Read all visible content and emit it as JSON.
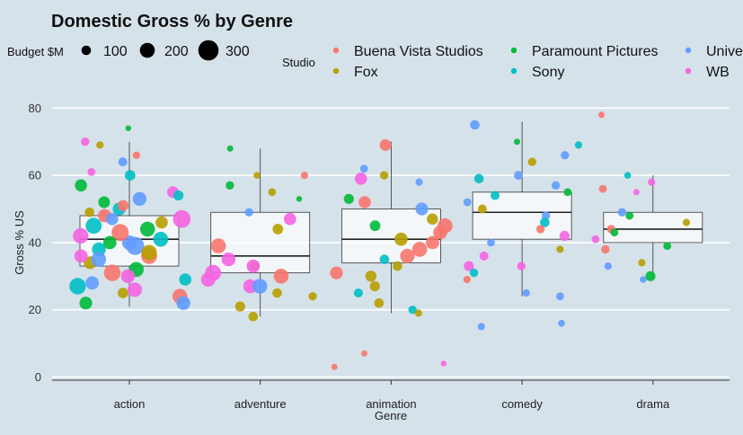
{
  "chart_data": {
    "type": "boxplot-with-jittered-scatter",
    "title": "Domestic Gross % by Genre",
    "xlabel": "Genre",
    "ylabel": "Gross % US",
    "categories": [
      "action",
      "adventure",
      "animation",
      "comedy",
      "drama"
    ],
    "ylim": [
      -1,
      82
    ],
    "yticks": [
      0,
      20,
      40,
      60,
      80
    ],
    "grid": "horizontal",
    "boxes": [
      {
        "category": "action",
        "whisker_low": 21,
        "q1": 33,
        "median": 41,
        "q3": 48,
        "whisker_high": 70
      },
      {
        "category": "adventure",
        "whisker_low": 18,
        "q1": 31,
        "median": 36,
        "q3": 49,
        "whisker_high": 68
      },
      {
        "category": "animation",
        "whisker_low": 19,
        "q1": 34,
        "median": 41,
        "q3": 50,
        "whisker_high": 70
      },
      {
        "category": "comedy",
        "whisker_low": 24,
        "q1": 41,
        "median": 49,
        "q3": 55,
        "whisker_high": 76
      },
      {
        "category": "drama",
        "whisker_low": 29,
        "q1": 40,
        "median": 44,
        "q3": 49,
        "whisker_high": 60
      }
    ],
    "legend_size": {
      "title": "Budget $M",
      "values": [
        100,
        200,
        300
      ]
    },
    "legend_studio": {
      "title": "Studio",
      "items": [
        {
          "name": "Buena Vista Studios",
          "color": "#f8766d"
        },
        {
          "name": "Fox",
          "color": "#b79f00"
        },
        {
          "name": "Paramount Pictures",
          "color": "#00ba38"
        },
        {
          "name": "Sony",
          "color": "#00bfc4"
        },
        {
          "name": "Universal",
          "color": "#619cff"
        },
        {
          "name": "WB",
          "color": "#f564e3"
        }
      ]
    },
    "points": [
      {
        "genre": "action",
        "studio": "Paramount Pictures",
        "y": 74,
        "budget": 30
      },
      {
        "genre": "action",
        "studio": "Buena Vista Studios",
        "y": 66,
        "budget": 60
      },
      {
        "genre": "action",
        "studio": "WB",
        "y": 70,
        "budget": 80
      },
      {
        "genre": "action",
        "studio": "Fox",
        "y": 69,
        "budget": 60
      },
      {
        "genre": "action",
        "studio": "Universal",
        "y": 64,
        "budget": 90
      },
      {
        "genre": "action",
        "studio": "Sony",
        "y": 60,
        "budget": 120
      },
      {
        "genre": "action",
        "studio": "Paramount Pictures",
        "y": 57,
        "budget": 150
      },
      {
        "genre": "action",
        "studio": "WB",
        "y": 55,
        "budget": 140
      },
      {
        "genre": "action",
        "studio": "Universal",
        "y": 53,
        "budget": 180
      },
      {
        "genre": "action",
        "studio": "Sony",
        "y": 50,
        "budget": 160
      },
      {
        "genre": "action",
        "studio": "Buena Vista Studios",
        "y": 48,
        "budget": 170
      },
      {
        "genre": "action",
        "studio": "Fox",
        "y": 46,
        "budget": 150
      },
      {
        "genre": "action",
        "studio": "Paramount Pictures",
        "y": 44,
        "budget": 200
      },
      {
        "genre": "action",
        "studio": "WB",
        "y": 42,
        "budget": 210
      },
      {
        "genre": "action",
        "studio": "Universal",
        "y": 40,
        "budget": 190
      },
      {
        "genre": "action",
        "studio": "Sony",
        "y": 38,
        "budget": 180
      },
      {
        "genre": "action",
        "studio": "Buena Vista Studios",
        "y": 36,
        "budget": 220
      },
      {
        "genre": "action",
        "studio": "Fox",
        "y": 34,
        "budget": 160
      },
      {
        "genre": "action",
        "studio": "Paramount Pictures",
        "y": 32,
        "budget": 200
      },
      {
        "genre": "action",
        "studio": "WB",
        "y": 30,
        "budget": 180
      },
      {
        "genre": "action",
        "studio": "Universal",
        "y": 28,
        "budget": 170
      },
      {
        "genre": "action",
        "studio": "Sony",
        "y": 27,
        "budget": 230
      },
      {
        "genre": "action",
        "studio": "Buena Vista Studios",
        "y": 24,
        "budget": 200
      },
      {
        "genre": "action",
        "studio": "Universal",
        "y": 22,
        "budget": 180
      },
      {
        "genre": "action",
        "studio": "Paramount Pictures",
        "y": 22,
        "budget": 160
      },
      {
        "genre": "action",
        "studio": "Fox",
        "y": 25,
        "budget": 120
      },
      {
        "genre": "action",
        "studio": "WB",
        "y": 47,
        "budget": 250
      },
      {
        "genre": "action",
        "studio": "Sony",
        "y": 45,
        "budget": 220
      },
      {
        "genre": "action",
        "studio": "Buena Vista Studios",
        "y": 43,
        "budget": 240
      },
      {
        "genre": "action",
        "studio": "Universal",
        "y": 39,
        "budget": 260
      },
      {
        "genre": "action",
        "studio": "Fox",
        "y": 37,
        "budget": 210
      },
      {
        "genre": "action",
        "studio": "Paramount Pictures",
        "y": 52,
        "budget": 140
      },
      {
        "genre": "action",
        "studio": "WB",
        "y": 61,
        "budget": 70
      },
      {
        "genre": "action",
        "studio": "Sony",
        "y": 29,
        "budget": 150
      },
      {
        "genre": "action",
        "studio": "Buena Vista Studios",
        "y": 51,
        "budget": 130
      },
      {
        "genre": "action",
        "studio": "Universal",
        "y": 35,
        "budget": 200
      },
      {
        "genre": "action",
        "studio": "WB",
        "y": 26,
        "budget": 190
      },
      {
        "genre": "action",
        "studio": "Paramount Pictures",
        "y": 40,
        "budget": 170
      },
      {
        "genre": "action",
        "studio": "Fox",
        "y": 49,
        "budget": 100
      },
      {
        "genre": "action",
        "studio": "Sony",
        "y": 41,
        "budget": 200
      },
      {
        "genre": "action",
        "studio": "Buena Vista Studios",
        "y": 31,
        "budget": 230
      },
      {
        "genre": "action",
        "studio": "Universal",
        "y": 47,
        "budget": 150
      },
      {
        "genre": "action",
        "studio": "WB",
        "y": 36,
        "budget": 170
      },
      {
        "genre": "action",
        "studio": "Sony",
        "y": 54,
        "budget": 110
      },
      {
        "genre": "adventure",
        "studio": "Paramount Pictures",
        "y": 68,
        "budget": 40
      },
      {
        "genre": "adventure",
        "studio": "Buena Vista Studios",
        "y": 60,
        "budget": 60
      },
      {
        "genre": "adventure",
        "studio": "Fox",
        "y": 60,
        "budget": 50
      },
      {
        "genre": "adventure",
        "studio": "Paramount Pictures",
        "y": 57,
        "budget": 80
      },
      {
        "genre": "adventure",
        "studio": "Fox",
        "y": 55,
        "budget": 70
      },
      {
        "genre": "adventure",
        "studio": "Universal",
        "y": 49,
        "budget": 80
      },
      {
        "genre": "adventure",
        "studio": "WB",
        "y": 47,
        "budget": 150
      },
      {
        "genre": "adventure",
        "studio": "Fox",
        "y": 44,
        "budget": 120
      },
      {
        "genre": "adventure",
        "studio": "Buena Vista Studios",
        "y": 39,
        "budget": 200
      },
      {
        "genre": "adventure",
        "studio": "WB",
        "y": 35,
        "budget": 180
      },
      {
        "genre": "adventure",
        "studio": "Fox",
        "y": 33,
        "budget": 100
      },
      {
        "genre": "adventure",
        "studio": "WB",
        "y": 31,
        "budget": 220
      },
      {
        "genre": "adventure",
        "studio": "WB",
        "y": 29,
        "budget": 190
      },
      {
        "genre": "adventure",
        "studio": "WB",
        "y": 27,
        "budget": 180
      },
      {
        "genre": "adventure",
        "studio": "Buena Vista Studios",
        "y": 30,
        "budget": 200
      },
      {
        "genre": "adventure",
        "studio": "Fox",
        "y": 25,
        "budget": 100
      },
      {
        "genre": "adventure",
        "studio": "Fox",
        "y": 24,
        "budget": 80
      },
      {
        "genre": "adventure",
        "studio": "Fox",
        "y": 21,
        "budget": 110
      },
      {
        "genre": "adventure",
        "studio": "Fox",
        "y": 18,
        "budget": 100
      },
      {
        "genre": "adventure",
        "studio": "Universal",
        "y": 27,
        "budget": 200
      },
      {
        "genre": "adventure",
        "studio": "WB",
        "y": 33,
        "budget": 170
      },
      {
        "genre": "adventure",
        "studio": "Paramount Pictures",
        "y": 53,
        "budget": 30
      },
      {
        "genre": "animation",
        "studio": "Buena Vista Studios",
        "y": 69,
        "budget": 140
      },
      {
        "genre": "animation",
        "studio": "Fox",
        "y": 60,
        "budget": 80
      },
      {
        "genre": "animation",
        "studio": "Universal",
        "y": 62,
        "budget": 70
      },
      {
        "genre": "animation",
        "studio": "WB",
        "y": 59,
        "budget": 150
      },
      {
        "genre": "animation",
        "studio": "Universal",
        "y": 58,
        "budget": 60
      },
      {
        "genre": "animation",
        "studio": "Paramount Pictures",
        "y": 53,
        "budget": 110
      },
      {
        "genre": "animation",
        "studio": "Buena Vista Studios",
        "y": 52,
        "budget": 150
      },
      {
        "genre": "animation",
        "studio": "Universal",
        "y": 50,
        "budget": 160
      },
      {
        "genre": "animation",
        "studio": "Fox",
        "y": 47,
        "budget": 130
      },
      {
        "genre": "animation",
        "studio": "Buena Vista Studios",
        "y": 45,
        "budget": 200
      },
      {
        "genre": "animation",
        "studio": "Buena Vista Studios",
        "y": 43,
        "budget": 180
      },
      {
        "genre": "animation",
        "studio": "Buena Vista Studios",
        "y": 40,
        "budget": 170
      },
      {
        "genre": "animation",
        "studio": "Buena Vista Studios",
        "y": 38,
        "budget": 200
      },
      {
        "genre": "animation",
        "studio": "Buena Vista Studios",
        "y": 36,
        "budget": 190
      },
      {
        "genre": "animation",
        "studio": "Fox",
        "y": 33,
        "budget": 100
      },
      {
        "genre": "animation",
        "studio": "Buena Vista Studios",
        "y": 31,
        "budget": 160
      },
      {
        "genre": "animation",
        "studio": "Fox",
        "y": 30,
        "budget": 130
      },
      {
        "genre": "animation",
        "studio": "Fox",
        "y": 27,
        "budget": 110
      },
      {
        "genre": "animation",
        "studio": "Sony",
        "y": 25,
        "budget": 90
      },
      {
        "genre": "animation",
        "studio": "Fox",
        "y": 22,
        "budget": 100
      },
      {
        "genre": "animation",
        "studio": "Sony",
        "y": 20,
        "budget": 80
      },
      {
        "genre": "animation",
        "studio": "Fox",
        "y": 19,
        "budget": 60
      },
      {
        "genre": "animation",
        "studio": "Buena Vista Studios",
        "y": 7,
        "budget": 40
      },
      {
        "genre": "animation",
        "studio": "WB",
        "y": 4,
        "budget": 30
      },
      {
        "genre": "animation",
        "studio": "Buena Vista Studios",
        "y": 3,
        "budget": 40
      },
      {
        "genre": "animation",
        "studio": "Paramount Pictures",
        "y": 45,
        "budget": 120
      },
      {
        "genre": "animation",
        "studio": "Fox",
        "y": 41,
        "budget": 170
      },
      {
        "genre": "animation",
        "studio": "Sony",
        "y": 35,
        "budget": 100
      },
      {
        "genre": "comedy",
        "studio": "Universal",
        "y": 75,
        "budget": 100
      },
      {
        "genre": "comedy",
        "studio": "Sony",
        "y": 69,
        "budget": 60
      },
      {
        "genre": "comedy",
        "studio": "Paramount Pictures",
        "y": 70,
        "budget": 40
      },
      {
        "genre": "comedy",
        "studio": "Universal",
        "y": 66,
        "budget": 80
      },
      {
        "genre": "comedy",
        "studio": "Fox",
        "y": 64,
        "budget": 80
      },
      {
        "genre": "comedy",
        "studio": "Universal",
        "y": 60,
        "budget": 90
      },
      {
        "genre": "comedy",
        "studio": "Sony",
        "y": 59,
        "budget": 100
      },
      {
        "genre": "comedy",
        "studio": "Universal",
        "y": 57,
        "budget": 80
      },
      {
        "genre": "comedy",
        "studio": "Paramount Pictures",
        "y": 55,
        "budget": 70
      },
      {
        "genre": "comedy",
        "studio": "Sony",
        "y": 54,
        "budget": 90
      },
      {
        "genre": "comedy",
        "studio": "Universal",
        "y": 52,
        "budget": 70
      },
      {
        "genre": "comedy",
        "studio": "Fox",
        "y": 50,
        "budget": 90
      },
      {
        "genre": "comedy",
        "studio": "Universal",
        "y": 48,
        "budget": 80
      },
      {
        "genre": "comedy",
        "studio": "Sony",
        "y": 46,
        "budget": 100
      },
      {
        "genre": "comedy",
        "studio": "Buena Vista Studios",
        "y": 44,
        "budget": 80
      },
      {
        "genre": "comedy",
        "studio": "WB",
        "y": 42,
        "budget": 110
      },
      {
        "genre": "comedy",
        "studio": "Universal",
        "y": 40,
        "budget": 70
      },
      {
        "genre": "comedy",
        "studio": "Fox",
        "y": 38,
        "budget": 60
      },
      {
        "genre": "comedy",
        "studio": "WB",
        "y": 36,
        "budget": 90
      },
      {
        "genre": "comedy",
        "studio": "WB",
        "y": 33,
        "budget": 110
      },
      {
        "genre": "comedy",
        "studio": "Sony",
        "y": 31,
        "budget": 80
      },
      {
        "genre": "comedy",
        "studio": "Buena Vista Studios",
        "y": 29,
        "budget": 60
      },
      {
        "genre": "comedy",
        "studio": "Universal",
        "y": 25,
        "budget": 60
      },
      {
        "genre": "comedy",
        "studio": "Universal",
        "y": 24,
        "budget": 70
      },
      {
        "genre": "comedy",
        "studio": "Universal",
        "y": 16,
        "budget": 50
      },
      {
        "genre": "comedy",
        "studio": "Universal",
        "y": 15,
        "budget": 60
      },
      {
        "genre": "comedy",
        "studio": "WB",
        "y": 33,
        "budget": 80
      },
      {
        "genre": "drama",
        "studio": "Buena Vista Studios",
        "y": 78,
        "budget": 40
      },
      {
        "genre": "drama",
        "studio": "Sony",
        "y": 60,
        "budget": 50
      },
      {
        "genre": "drama",
        "studio": "WB",
        "y": 58,
        "budget": 60
      },
      {
        "genre": "drama",
        "studio": "Buena Vista Studios",
        "y": 56,
        "budget": 70
      },
      {
        "genre": "drama",
        "studio": "WB",
        "y": 55,
        "budget": 40
      },
      {
        "genre": "drama",
        "studio": "Universal",
        "y": 49,
        "budget": 80
      },
      {
        "genre": "drama",
        "studio": "Paramount Pictures",
        "y": 48,
        "budget": 70
      },
      {
        "genre": "drama",
        "studio": "Fox",
        "y": 46,
        "budget": 60
      },
      {
        "genre": "drama",
        "studio": "Buena Vista Studios",
        "y": 44,
        "budget": 80
      },
      {
        "genre": "drama",
        "studio": "Paramount Pictures",
        "y": 43,
        "budget": 70
      },
      {
        "genre": "drama",
        "studio": "WB",
        "y": 41,
        "budget": 70
      },
      {
        "genre": "drama",
        "studio": "Paramount Pictures",
        "y": 39,
        "budget": 70
      },
      {
        "genre": "drama",
        "studio": "Buena Vista Studios",
        "y": 38,
        "budget": 80
      },
      {
        "genre": "drama",
        "studio": "Fox",
        "y": 34,
        "budget": 60
      },
      {
        "genre": "drama",
        "studio": "Universal",
        "y": 33,
        "budget": 60
      },
      {
        "genre": "drama",
        "studio": "Paramount Pictures",
        "y": 30,
        "budget": 110
      },
      {
        "genre": "drama",
        "studio": "Universal",
        "y": 29,
        "budget": 50
      }
    ]
  }
}
